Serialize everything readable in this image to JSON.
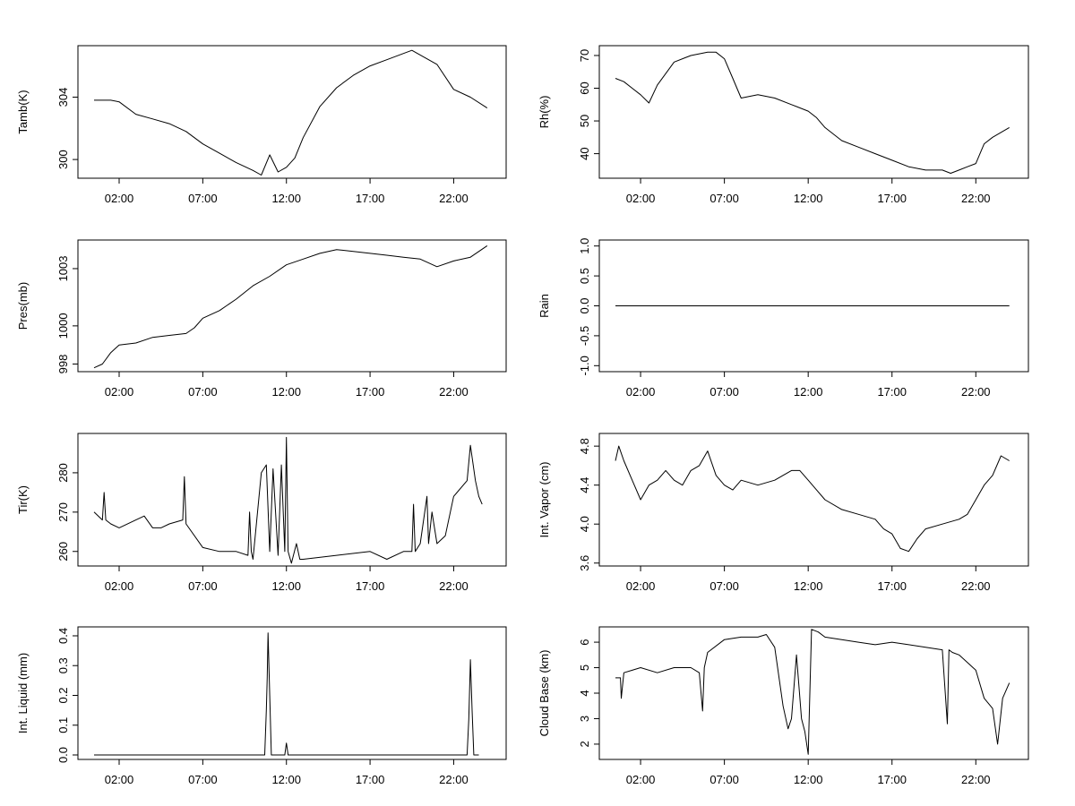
{
  "chart_data": [
    {
      "type": "line",
      "ylabel": "Tamb(K)",
      "xticks": [
        "02:00",
        "07:00",
        "12:00",
        "17:00",
        "22:00"
      ],
      "yticks": [
        300,
        304
      ],
      "ylim": [
        298.8,
        307.3
      ],
      "grid": false,
      "x": [
        0.5,
        1,
        1.5,
        2,
        3,
        4,
        5,
        6,
        7,
        8,
        9,
        10,
        10.5,
        11,
        11.5,
        12,
        12.5,
        13,
        14,
        15,
        16,
        17,
        18,
        19,
        19.5,
        20,
        21,
        22,
        23,
        24
      ],
      "y": [
        303.8,
        303.8,
        303.8,
        303.7,
        302.9,
        302.6,
        302.3,
        301.8,
        301.0,
        300.4,
        299.8,
        299.3,
        299.0,
        300.3,
        299.2,
        299.5,
        300.1,
        301.4,
        303.4,
        304.6,
        305.4,
        306.0,
        306.4,
        306.8,
        307.0,
        306.7,
        306.1,
        304.5,
        304.0,
        303.3
      ]
    },
    {
      "type": "line",
      "ylabel": "Rh(%)",
      "xticks": [
        "02:00",
        "07:00",
        "12:00",
        "17:00",
        "22:00"
      ],
      "yticks": [
        40,
        50,
        60,
        70
      ],
      "ylim": [
        32.5,
        73
      ],
      "grid": false,
      "x": [
        0.5,
        1,
        1.5,
        2,
        2.5,
        3,
        4,
        5,
        6,
        6.5,
        7,
        7.5,
        8,
        9,
        10,
        11,
        12,
        12.5,
        13,
        14,
        15,
        16,
        17,
        18,
        19,
        20,
        20.5,
        21,
        21.5,
        22,
        22.5,
        23,
        24
      ],
      "y": [
        63,
        62,
        60,
        58,
        55.5,
        61,
        68,
        70,
        71,
        71,
        69,
        63,
        57,
        58,
        57,
        55,
        53,
        51,
        48,
        44,
        42,
        40,
        38,
        36,
        35,
        35,
        34,
        35,
        36,
        37,
        43,
        45,
        48
      ]
    },
    {
      "type": "line",
      "ylabel": "Pres(mb)",
      "xticks": [
        "02:00",
        "07:00",
        "12:00",
        "17:00",
        "22:00"
      ],
      "yticks": [
        998,
        1000,
        1003
      ],
      "ylim": [
        997.6,
        1004.5
      ],
      "grid": false,
      "x": [
        0.5,
        1,
        1.5,
        2,
        3,
        4,
        5,
        6,
        6.5,
        7,
        8,
        9,
        10,
        11,
        12,
        13,
        14,
        15,
        16,
        17,
        18,
        19,
        20,
        21,
        22,
        23,
        24
      ],
      "y": [
        997.8,
        998.0,
        998.6,
        999.0,
        999.1,
        999.4,
        999.5,
        999.6,
        999.9,
        1000.4,
        1000.8,
        1001.4,
        1002.1,
        1002.6,
        1003.2,
        1003.5,
        1003.8,
        1004.0,
        1003.9,
        1003.8,
        1003.7,
        1003.6,
        1003.5,
        1003.1,
        1003.4,
        1003.6,
        1004.2
      ]
    },
    {
      "type": "line",
      "ylabel": "Rain",
      "xticks": [
        "02:00",
        "07:00",
        "12:00",
        "17:00",
        "22:00"
      ],
      "yticks": [
        -1.0,
        -0.5,
        0.0,
        0.5,
        1.0
      ],
      "ylim": [
        -1.1,
        1.1
      ],
      "grid": false,
      "x": [
        0.5,
        24
      ],
      "y": [
        0,
        0
      ]
    },
    {
      "type": "line",
      "ylabel": "Tir(K)",
      "xticks": [
        "02:00",
        "07:00",
        "12:00",
        "17:00",
        "22:00"
      ],
      "yticks": [
        260,
        270,
        280
      ],
      "ylim": [
        256.3,
        290
      ],
      "grid": false,
      "x": [
        0.5,
        1,
        1.1,
        1.2,
        1.5,
        2,
        3,
        3.5,
        4,
        4.5,
        5,
        5.8,
        5.9,
        6,
        7,
        8,
        9,
        9.7,
        9.8,
        9.9,
        10,
        10.5,
        10.8,
        11,
        11.2,
        11.5,
        11.7,
        11.9,
        12,
        12.1,
        12.3,
        12.6,
        12.8,
        13,
        15,
        17,
        18,
        19,
        19.5,
        19.6,
        19.7,
        20,
        20.4,
        20.5,
        20.7,
        21,
        21.5,
        22,
        22.8,
        23,
        23.3,
        23.5,
        23.7
      ],
      "y": [
        270,
        268,
        275,
        268,
        267,
        266,
        268,
        269,
        266,
        266,
        267,
        268,
        279,
        267,
        261,
        260,
        260,
        259,
        270,
        260,
        258,
        280,
        282,
        260,
        281,
        259,
        282,
        260,
        289,
        260,
        257,
        262,
        258,
        258,
        259,
        260,
        258,
        260,
        260,
        272,
        260,
        262,
        274,
        262,
        270,
        262,
        264,
        274,
        278,
        287,
        278,
        274,
        272
      ]
    },
    {
      "type": "line",
      "ylabel": "Int. Vapor (cm)",
      "xticks": [
        "02:00",
        "07:00",
        "12:00",
        "17:00",
        "22:00"
      ],
      "yticks": [
        3.6,
        4.0,
        4.4,
        4.8
      ],
      "ylim": [
        3.57,
        4.93
      ],
      "grid": false,
      "x": [
        0.5,
        0.7,
        1,
        1.5,
        2,
        2.5,
        3,
        3.5,
        4,
        4.5,
        5,
        5.5,
        6,
        6.5,
        7,
        7.5,
        8,
        9,
        10,
        11,
        11.5,
        12,
        12.5,
        13,
        14,
        15,
        16,
        16.5,
        17,
        17.5,
        18,
        18.5,
        19,
        20,
        21,
        21.5,
        22,
        22.5,
        23,
        23.5,
        24
      ],
      "y": [
        4.65,
        4.8,
        4.65,
        4.45,
        4.25,
        4.4,
        4.45,
        4.55,
        4.45,
        4.4,
        4.55,
        4.6,
        4.75,
        4.5,
        4.4,
        4.35,
        4.45,
        4.4,
        4.45,
        4.55,
        4.55,
        4.45,
        4.35,
        4.25,
        4.15,
        4.1,
        4.05,
        3.95,
        3.9,
        3.75,
        3.72,
        3.85,
        3.95,
        4.0,
        4.05,
        4.1,
        4.25,
        4.4,
        4.5,
        4.7,
        4.65
      ]
    },
    {
      "type": "line",
      "ylabel": "Int. Liquid (mm)",
      "xticks": [
        "02:00",
        "07:00",
        "12:00",
        "17:00",
        "22:00"
      ],
      "yticks": [
        0.0,
        0.1,
        0.2,
        0.3,
        0.4
      ],
      "ylim": [
        -0.015,
        0.43
      ],
      "grid": false,
      "x": [
        0.5,
        10.7,
        10.8,
        10.85,
        10.9,
        11.0,
        11.1,
        11.5,
        11.9,
        12.0,
        12.05,
        12.1,
        22.8,
        22.9,
        23.0,
        23.1,
        23.2,
        23.3,
        23.5
      ],
      "y": [
        0,
        0,
        0.15,
        0.26,
        0.41,
        0.2,
        0,
        0,
        0,
        0.04,
        0.02,
        0,
        0,
        0.12,
        0.32,
        0.15,
        0,
        0,
        0
      ]
    },
    {
      "type": "line",
      "ylabel": "Cloud Base (km)",
      "xticks": [
        "02:00",
        "07:00",
        "12:00",
        "17:00",
        "22:00"
      ],
      "yticks": [
        2,
        3,
        4,
        5,
        6
      ],
      "ylim": [
        1.4,
        6.6
      ],
      "grid": false,
      "x": [
        0.5,
        0.8,
        0.85,
        1,
        1.5,
        2,
        3,
        4,
        5,
        5.5,
        5.7,
        5.8,
        6,
        7,
        8,
        9,
        9.5,
        10,
        10.5,
        10.8,
        11,
        11.3,
        11.6,
        11.8,
        12,
        12.2,
        12.6,
        13,
        14,
        15,
        16,
        17,
        18,
        19,
        20,
        20.3,
        20.4,
        20.6,
        21,
        21.5,
        22,
        22.5,
        23,
        23.3,
        23.6,
        24
      ],
      "y": [
        4.6,
        4.6,
        3.8,
        4.8,
        4.9,
        5.0,
        4.8,
        5.0,
        5.0,
        4.8,
        3.3,
        5.0,
        5.6,
        6.1,
        6.2,
        6.2,
        6.3,
        5.8,
        3.5,
        2.6,
        3.0,
        5.5,
        3.0,
        2.5,
        1.6,
        6.5,
        6.4,
        6.2,
        6.1,
        6.0,
        5.9,
        6.0,
        5.9,
        5.8,
        5.7,
        2.8,
        5.7,
        5.6,
        5.5,
        5.2,
        4.9,
        3.8,
        3.4,
        2.0,
        3.8,
        4.4
      ]
    }
  ]
}
